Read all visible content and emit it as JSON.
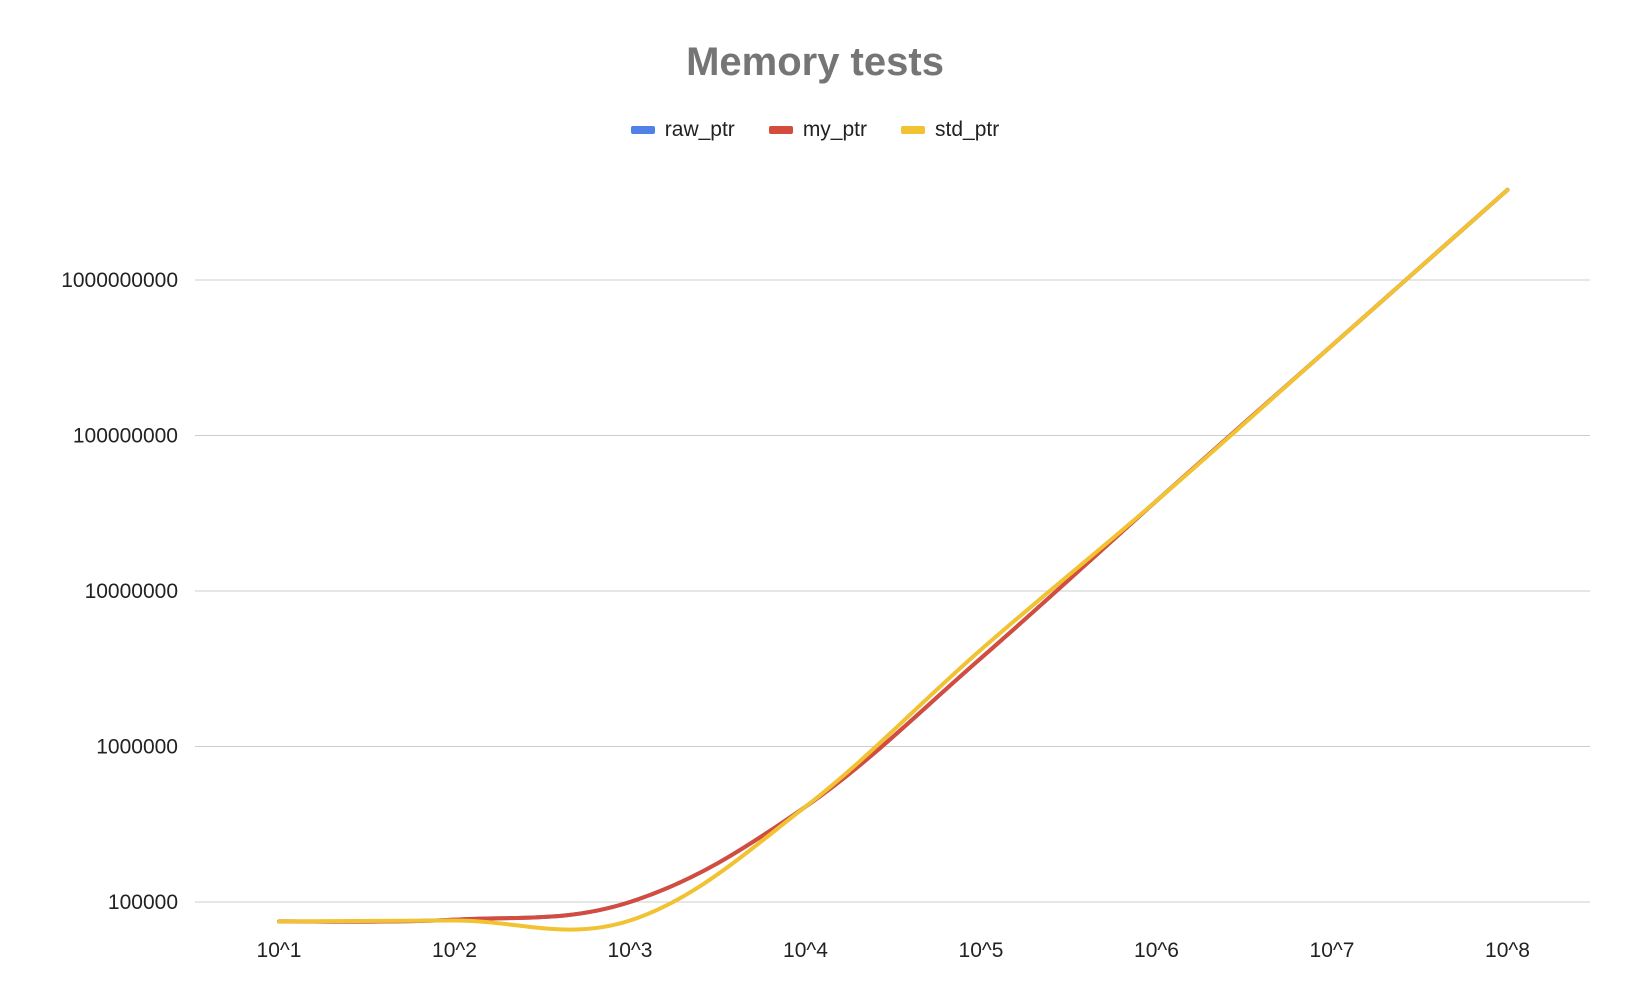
{
  "chart_data": {
    "type": "line",
    "title": "Memory tests",
    "xlabel": "",
    "ylabel": "",
    "categories": [
      "10^1",
      "10^2",
      "10^3",
      "10^4",
      "10^5",
      "10^6",
      "10^7",
      "10^8"
    ],
    "y_scale": "log",
    "y_ticks": [
      "100000",
      "1000000",
      "10000000",
      "100000000",
      "1000000000"
    ],
    "ylim": [
      65000,
      4200000000
    ],
    "legend_position": "top",
    "grid": true,
    "series": [
      {
        "name": "raw_ptr",
        "color": "#4f81e6",
        "values": [
          75000,
          77000,
          100000,
          410000,
          3700000,
          38000000,
          380000000,
          3800000000
        ]
      },
      {
        "name": "my_ptr",
        "color": "#d44c3d",
        "values": [
          75000,
          77000,
          100000,
          410000,
          3700000,
          38000000,
          380000000,
          3800000000
        ]
      },
      {
        "name": "std_ptr",
        "color": "#f1c232",
        "values": [
          75000,
          76000,
          76000,
          410000,
          4200000,
          38000000,
          380000000,
          3800000000
        ]
      }
    ]
  }
}
